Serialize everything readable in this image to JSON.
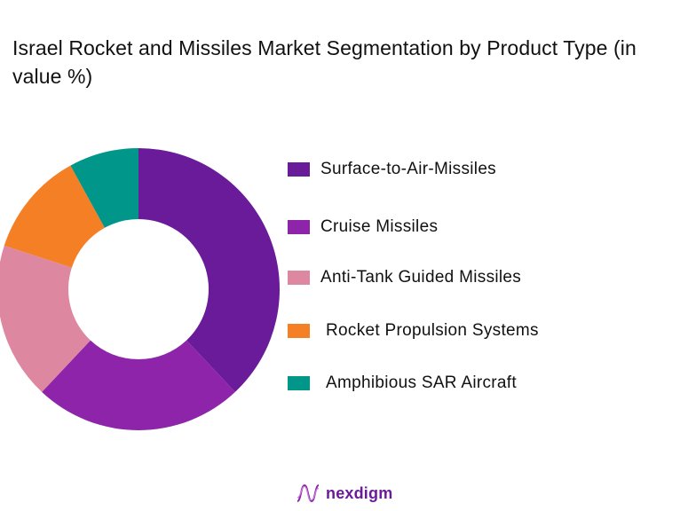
{
  "title": "Israel Rocket and Missiles Market Segmentation by Product Type (in value %)",
  "chart_data": {
    "type": "pie",
    "subtype": "donut",
    "title": "Israel Rocket and Missiles Market Segmentation by Product Type (in value %)",
    "categories": [
      "Surface-to-Air-Missiles",
      "Cruise Missiles",
      "Anti-Tank Guided Missiles",
      "Rocket Propulsion Systems",
      "Amphibious SAR Aircraft"
    ],
    "values": [
      38,
      24,
      18,
      12,
      8
    ],
    "colors": [
      "#6a1b9a",
      "#8e24aa",
      "#de87a0",
      "#f47f24",
      "#00968a"
    ],
    "start_angle": "12 o'clock",
    "direction": "clockwise",
    "legend_position": "right",
    "data_labels": false
  },
  "legend": {
    "items": [
      {
        "label": "Surface-to-Air-Missiles",
        "color": "#6a1b9a"
      },
      {
        "label": "Cruise Missiles",
        "color": "#8e24aa"
      },
      {
        "label": "Anti-Tank Guided Missiles",
        "color": "#de87a0"
      },
      {
        "label": "Rocket Propulsion Systems",
        "color": "#f47f24"
      },
      {
        "label": "Amphibious SAR Aircraft",
        "color": "#00968a"
      }
    ]
  },
  "logo": {
    "text": "nexdigm",
    "icon": "nexdigm-wave-icon",
    "color": "#6a1b9a"
  }
}
